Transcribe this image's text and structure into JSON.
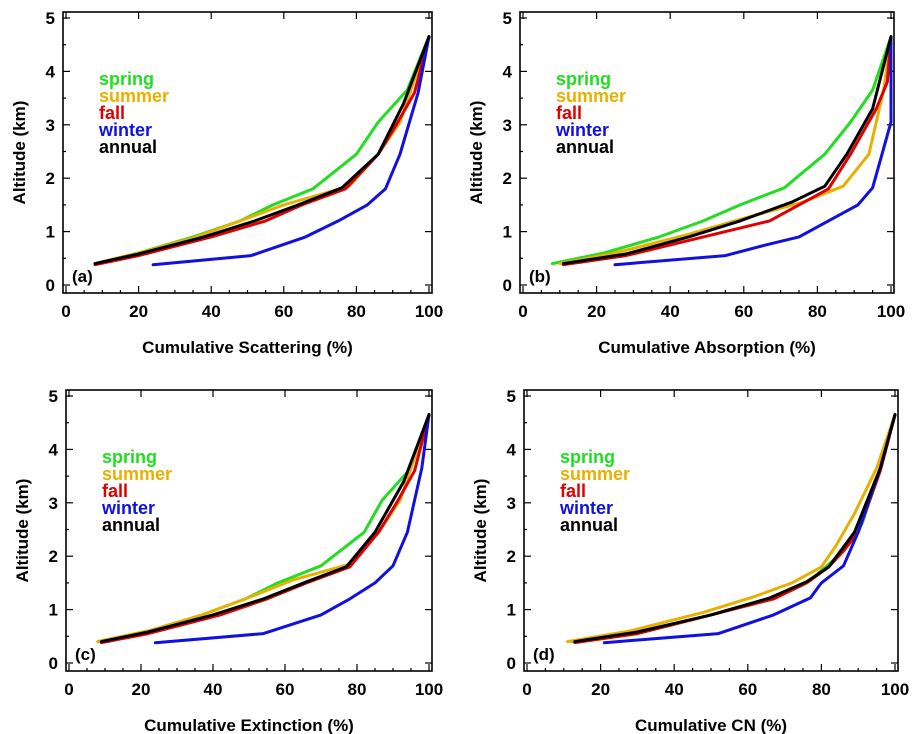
{
  "colors": {
    "spring": "#22dd22",
    "summer": "#e8b000",
    "fall": "#e00000",
    "winter": "#1010e0",
    "annual": "#000000"
  },
  "chart_data": [
    {
      "type": "line",
      "panel": "(a)",
      "xlabel": "Cumulative Scattering (%)",
      "ylabel": "Altitude (km)",
      "xlim": [
        0,
        100
      ],
      "ylim": [
        0,
        5
      ],
      "xticks": [
        0,
        20,
        40,
        60,
        80,
        100
      ],
      "yticks": [
        0,
        1,
        2,
        3,
        4,
        5
      ],
      "legend_position": "upper-left",
      "series": [
        {
          "name": "spring",
          "color": "#22dd22",
          "x": [
            8,
            20,
            35,
            48,
            57,
            68,
            80,
            86,
            94,
            100
          ],
          "y": [
            0.4,
            0.6,
            0.9,
            1.2,
            1.5,
            1.8,
            2.45,
            3.05,
            3.65,
            4.65
          ]
        },
        {
          "name": "summer",
          "color": "#e8b000",
          "x": [
            8,
            20,
            35,
            48,
            60,
            78,
            86,
            92,
            100
          ],
          "y": [
            0.4,
            0.6,
            0.88,
            1.2,
            1.5,
            1.85,
            2.45,
            3.05,
            4.65
          ]
        },
        {
          "name": "fall",
          "color": "#e00000",
          "x": [
            8,
            20,
            40,
            55,
            65,
            77,
            86,
            91,
            96,
            100
          ],
          "y": [
            0.38,
            0.55,
            0.9,
            1.2,
            1.5,
            1.8,
            2.45,
            3.0,
            3.6,
            4.65
          ]
        },
        {
          "name": "winter",
          "color": "#1010e0",
          "x": [
            24,
            51,
            66,
            75,
            83,
            88,
            92,
            97,
            100
          ],
          "y": [
            0.38,
            0.55,
            0.9,
            1.2,
            1.5,
            1.8,
            2.45,
            3.6,
            4.65
          ]
        },
        {
          "name": "annual",
          "color": "#000000",
          "x": [
            8,
            20,
            38,
            52,
            64,
            76,
            86,
            93,
            100
          ],
          "y": [
            0.4,
            0.58,
            0.9,
            1.2,
            1.5,
            1.82,
            2.45,
            3.4,
            4.65
          ]
        }
      ]
    },
    {
      "type": "line",
      "panel": "(b)",
      "xlabel": "Cumulative Absorption (%)",
      "ylabel": "Altitude (km)",
      "xlim": [
        0,
        100
      ],
      "ylim": [
        0,
        5
      ],
      "xticks": [
        0,
        20,
        40,
        60,
        80,
        100
      ],
      "yticks": [
        0,
        1,
        2,
        3,
        4,
        5
      ],
      "legend_position": "upper-left",
      "series": [
        {
          "name": "spring",
          "color": "#22dd22",
          "x": [
            8,
            22,
            37,
            49,
            59,
            71,
            82,
            89,
            95,
            100
          ],
          "y": [
            0.4,
            0.6,
            0.9,
            1.2,
            1.5,
            1.82,
            2.45,
            3.05,
            3.65,
            4.65
          ]
        },
        {
          "name": "summer",
          "color": "#e8b000",
          "x": [
            10,
            25,
            45,
            60,
            76,
            87,
            94,
            98,
            100
          ],
          "y": [
            0.4,
            0.6,
            0.95,
            1.25,
            1.55,
            1.85,
            2.45,
            3.65,
            4.65
          ]
        },
        {
          "name": "fall",
          "color": "#e00000",
          "x": [
            11,
            28,
            49,
            67,
            75,
            83,
            89,
            96,
            99,
            100
          ],
          "y": [
            0.38,
            0.55,
            0.9,
            1.2,
            1.5,
            1.8,
            2.45,
            3.3,
            3.8,
            4.65
          ]
        },
        {
          "name": "winter",
          "color": "#1010e0",
          "x": [
            25,
            55,
            66,
            75,
            83,
            91,
            95,
            100,
            100
          ],
          "y": [
            0.38,
            0.55,
            0.75,
            0.9,
            1.2,
            1.5,
            1.82,
            3.05,
            4.65
          ]
        },
        {
          "name": "annual",
          "color": "#000000",
          "x": [
            11,
            28,
            45,
            59,
            73,
            82,
            88,
            95,
            100
          ],
          "y": [
            0.4,
            0.58,
            0.9,
            1.2,
            1.55,
            1.85,
            2.45,
            3.3,
            4.65
          ]
        }
      ]
    },
    {
      "type": "line",
      "panel": "(c)",
      "xlabel": "Cumulative Extinction (%)",
      "ylabel": "Altitude (km)",
      "xlim": [
        0,
        100
      ],
      "ylim": [
        0,
        5
      ],
      "xticks": [
        0,
        20,
        40,
        60,
        80,
        100
      ],
      "yticks": [
        0,
        1,
        2,
        3,
        4,
        5
      ],
      "legend_position": "upper-left",
      "series": [
        {
          "name": "spring",
          "color": "#22dd22",
          "x": [
            8,
            22,
            37,
            49,
            58,
            70,
            82,
            87,
            95,
            100
          ],
          "y": [
            0.4,
            0.6,
            0.9,
            1.2,
            1.5,
            1.82,
            2.45,
            3.05,
            3.65,
            4.65
          ]
        },
        {
          "name": "summer",
          "color": "#e8b000",
          "x": [
            8,
            22,
            37,
            49,
            62,
            78,
            86,
            92,
            100
          ],
          "y": [
            0.4,
            0.6,
            0.9,
            1.2,
            1.55,
            1.85,
            2.45,
            3.05,
            4.65
          ]
        },
        {
          "name": "fall",
          "color": "#e00000",
          "x": [
            9,
            22,
            42,
            55,
            66,
            78,
            86,
            91,
            96,
            100
          ],
          "y": [
            0.38,
            0.55,
            0.9,
            1.2,
            1.5,
            1.8,
            2.45,
            3.0,
            3.6,
            4.65
          ]
        },
        {
          "name": "winter",
          "color": "#1010e0",
          "x": [
            24,
            54,
            70,
            78,
            85,
            90,
            94,
            98,
            100
          ],
          "y": [
            0.38,
            0.55,
            0.9,
            1.2,
            1.5,
            1.82,
            2.45,
            3.65,
            4.65
          ]
        },
        {
          "name": "annual",
          "color": "#000000",
          "x": [
            9,
            22,
            40,
            54,
            66,
            77,
            85,
            93,
            100
          ],
          "y": [
            0.4,
            0.58,
            0.9,
            1.2,
            1.52,
            1.8,
            2.45,
            3.4,
            4.65
          ]
        }
      ]
    },
    {
      "type": "line",
      "panel": "(d)",
      "xlabel": "Cumulative CN (%)",
      "ylabel": "Altitude (km)",
      "xlim": [
        0,
        100
      ],
      "ylim": [
        0,
        5
      ],
      "xticks": [
        0,
        20,
        40,
        60,
        80,
        100
      ],
      "yticks": [
        0,
        1,
        2,
        3,
        4,
        5
      ],
      "legend_position": "upper-left",
      "series": [
        {
          "name": "spring",
          "color": "#22dd22",
          "x": [
            12,
            30,
            50,
            68,
            77,
            82,
            86,
            91,
            96,
            100
          ],
          "y": [
            0.4,
            0.55,
            0.9,
            1.25,
            1.55,
            1.85,
            2.1,
            2.6,
            3.65,
            4.65
          ]
        },
        {
          "name": "summer",
          "color": "#e8b000",
          "x": [
            11,
            28,
            48,
            62,
            72,
            80,
            84,
            89,
            95,
            100
          ],
          "y": [
            0.4,
            0.6,
            0.95,
            1.25,
            1.5,
            1.8,
            2.2,
            2.8,
            3.65,
            4.65
          ]
        },
        {
          "name": "fall",
          "color": "#e00000",
          "x": [
            13,
            30,
            50,
            67,
            76,
            82,
            86,
            90,
            96,
            100
          ],
          "y": [
            0.38,
            0.55,
            0.9,
            1.2,
            1.5,
            1.8,
            2.1,
            2.45,
            3.6,
            4.65
          ]
        },
        {
          "name": "winter",
          "color": "#1010e0",
          "x": [
            21,
            52,
            67,
            77,
            80,
            86,
            90,
            96,
            100
          ],
          "y": [
            0.38,
            0.55,
            0.9,
            1.22,
            1.5,
            1.82,
            2.45,
            3.65,
            4.65
          ]
        },
        {
          "name": "annual",
          "color": "#000000",
          "x": [
            13,
            30,
            50,
            66,
            76,
            82,
            89,
            96,
            100
          ],
          "y": [
            0.4,
            0.58,
            0.9,
            1.22,
            1.52,
            1.8,
            2.45,
            3.65,
            4.65
          ]
        }
      ]
    }
  ]
}
